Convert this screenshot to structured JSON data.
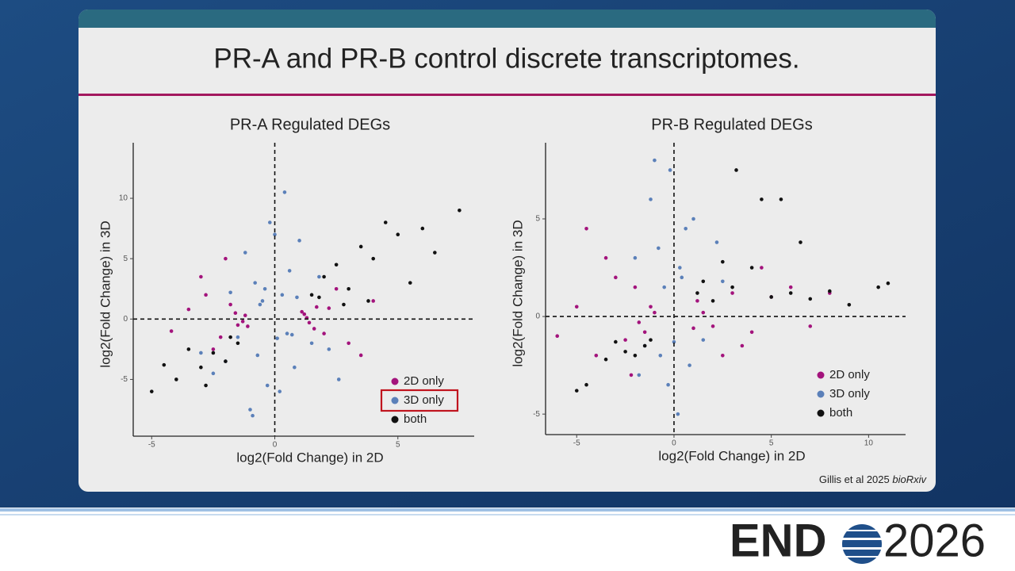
{
  "slide_title": "PR-A and PR-B control discrete transcriptomes.",
  "citation": {
    "text": "Gillis et al 2025",
    "source": "bioRxiv"
  },
  "logo": {
    "left": "END",
    "right": "2026"
  },
  "chart_data": [
    {
      "type": "scatter",
      "title": "PR-A Regulated DEGs",
      "x_label": "log2(Fold Change) in 2D",
      "y_label": "log2(Fold Change) in 3D",
      "xlim": [
        -5.75,
        8.1
      ],
      "ylim": [
        -9.7,
        14.6
      ],
      "xticks": [
        -5,
        0,
        5
      ],
      "yticks": [
        -5,
        0,
        5,
        10
      ],
      "reference_lines": [
        0,
        0
      ],
      "legend": "bottom-right",
      "highlighted_legend_entry": 1,
      "series": [
        {
          "name": "2D only",
          "color": "#a3137c",
          "x": [
            -1.2,
            -1.5,
            -1.8,
            -2.2,
            -2.8,
            -3.5,
            -1.3,
            -1.6,
            -2.5,
            -3.0,
            1.2,
            1.4,
            1.7,
            2.0,
            2.5,
            3.0,
            1.3,
            1.6,
            2.2,
            4.0,
            -4.2,
            -1.1,
            1.1,
            3.5,
            -2.0
          ],
          "values": [
            0.3,
            -0.5,
            1.2,
            -1.5,
            2.0,
            0.8,
            -0.2,
            0.5,
            -2.5,
            3.5,
            0.4,
            -0.3,
            1.0,
            -1.2,
            2.5,
            -2.0,
            0.1,
            -0.8,
            0.9,
            1.5,
            -1.0,
            -0.6,
            0.6,
            -3.0,
            5.0
          ]
        },
        {
          "name": "3D only",
          "color": "#5b80b9",
          "x": [
            -0.5,
            0.3,
            -0.8,
            0.6,
            -1.2,
            1.0,
            -0.2,
            0.4,
            -1.5,
            1.5,
            -0.7,
            0.8,
            -0.3,
            0.2,
            -2.0,
            2.2,
            -1.0,
            0.9,
            -0.4,
            0.5,
            -2.5,
            1.8,
            -3.0,
            0.1,
            -0.6,
            0.7,
            -1.8,
            2.6,
            0.0,
            -0.9
          ],
          "values": [
            1.5,
            2.0,
            3.0,
            4.0,
            5.5,
            6.5,
            8.0,
            10.5,
            -1.5,
            -2.0,
            -3.0,
            -4.0,
            -5.5,
            -6.0,
            -3.5,
            -2.5,
            -7.5,
            1.8,
            2.5,
            -1.2,
            -4.5,
            3.5,
            -2.8,
            -1.6,
            1.2,
            -1.3,
            2.2,
            -5.0,
            7.0,
            -8.0
          ]
        },
        {
          "name": "both",
          "color": "#111111",
          "x": [
            1.5,
            2.0,
            2.5,
            3.0,
            3.5,
            4.0,
            4.5,
            5.0,
            5.5,
            6.0,
            6.5,
            7.5,
            -1.5,
            -2.0,
            -2.5,
            -3.0,
            -3.5,
            -4.0,
            -4.5,
            -5.0,
            3.8,
            2.8,
            1.8,
            -1.8,
            -2.8
          ],
          "values": [
            2.0,
            3.5,
            4.5,
            2.5,
            6.0,
            5.0,
            8.0,
            7.0,
            3.0,
            7.5,
            5.5,
            9.0,
            -2.0,
            -3.5,
            -2.8,
            -4.0,
            -2.5,
            -5.0,
            -3.8,
            -6.0,
            1.5,
            1.2,
            1.8,
            -1.5,
            -5.5
          ]
        }
      ]
    },
    {
      "type": "scatter",
      "title": "PR-B Regulated DEGs",
      "x_label": "log2(Fold Change) in 2D",
      "y_label": "log2(Fold Change) in 3D",
      "xlim": [
        -6.6,
        11.9
      ],
      "ylim": [
        -6.05,
        8.9
      ],
      "xticks": [
        -5,
        0,
        5,
        10
      ],
      "yticks": [
        -5,
        0,
        5
      ],
      "reference_lines": [
        0,
        0
      ],
      "legend": "bottom-right",
      "series": [
        {
          "name": "2D only",
          "color": "#a3137c",
          "x": [
            -1.2,
            -1.5,
            -2.0,
            -2.5,
            -3.0,
            -4.0,
            -5.0,
            -6.0,
            -1.8,
            -3.5,
            1.2,
            1.5,
            2.0,
            3.0,
            4.0,
            5.0,
            6.0,
            7.0,
            8.0,
            2.5,
            -2.2,
            -4.5,
            3.5,
            4.5,
            -1.0,
            1.0
          ],
          "values": [
            0.5,
            -0.8,
            1.5,
            -1.2,
            2.0,
            -2.0,
            0.5,
            -1.0,
            -0.3,
            3.0,
            0.8,
            0.2,
            -0.5,
            1.2,
            -0.8,
            1.0,
            1.5,
            -0.5,
            1.2,
            -2.0,
            -3.0,
            4.5,
            -1.5,
            2.5,
            0.2,
            -0.6
          ]
        },
        {
          "name": "3D only",
          "color": "#5b80b9",
          "x": [
            -0.5,
            0.3,
            -0.8,
            0.6,
            -1.2,
            1.0,
            -0.2,
            0.4,
            -1.5,
            1.5,
            -0.7,
            0.8,
            -0.3,
            0.2,
            -2.0,
            2.2,
            -1.0,
            -1.8,
            2.5,
            0.0
          ],
          "values": [
            1.5,
            2.5,
            3.5,
            4.5,
            6.0,
            5.0,
            7.5,
            2.0,
            -1.5,
            -1.2,
            -2.0,
            -2.5,
            -3.5,
            -5.0,
            3.0,
            3.8,
            8.0,
            -3.0,
            1.8,
            -1.3
          ]
        },
        {
          "name": "both",
          "color": "#111111",
          "x": [
            1.2,
            1.5,
            2.0,
            3.0,
            4.0,
            5.0,
            6.0,
            7.0,
            8.0,
            9.0,
            10.5,
            11.0,
            3.2,
            4.5,
            5.5,
            -1.2,
            -1.5,
            -2.0,
            -2.5,
            -3.0,
            -3.5,
            -4.5,
            -5.0,
            2.5,
            6.5
          ],
          "values": [
            1.2,
            1.8,
            0.8,
            1.5,
            2.5,
            1.0,
            1.2,
            0.9,
            1.3,
            0.6,
            1.5,
            1.7,
            7.5,
            6.0,
            6.0,
            -1.2,
            -1.5,
            -2.0,
            -1.8,
            -1.3,
            -2.2,
            -3.5,
            -3.8,
            2.8,
            3.8
          ]
        }
      ]
    }
  ]
}
